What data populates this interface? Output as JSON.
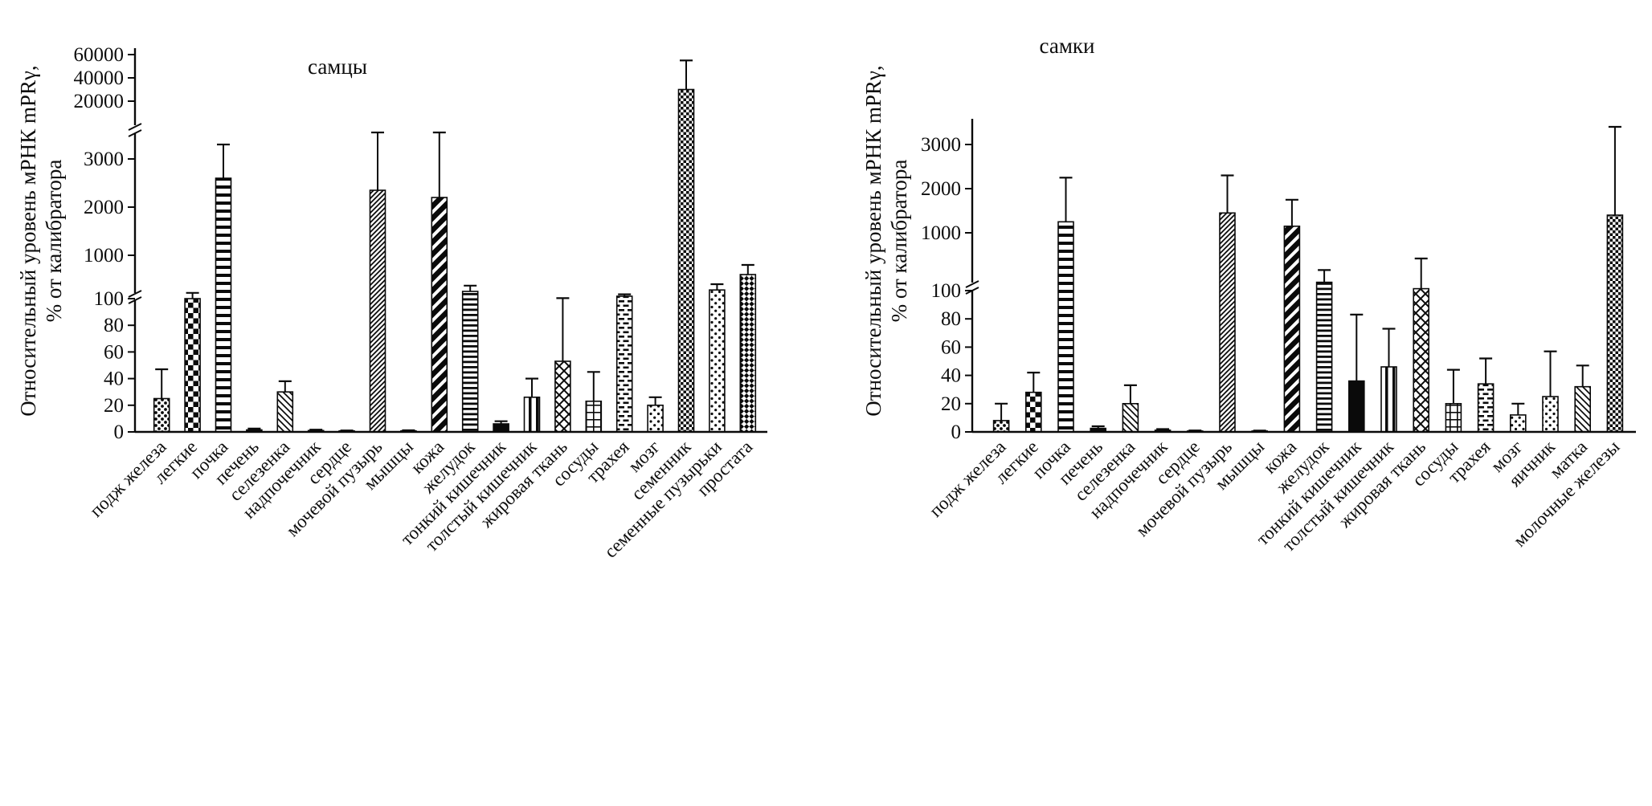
{
  "figure": {
    "background": "#ffffff",
    "ink_color": "#0a0a0a",
    "description_title": "Относительный уровень мРНК mPRγ, % от калибратора"
  },
  "chart_data": [
    {
      "type": "bar",
      "title": "самцы",
      "ylabel_lines": [
        "Относительный уровень мРНК mPRγ,",
        "% от калибратора"
      ],
      "categories": [
        "подж железа",
        "легкие",
        "почка",
        "печень",
        "селезенка",
        "надпочечник",
        "сердце",
        "мочевой пузырь",
        "мышцы",
        "кожа",
        "желудок",
        "тонкий кишечник",
        "толстый кишечник",
        "жировая ткань",
        "сосуды",
        "трахея",
        "мозг",
        "семенник",
        "семенные пузырьки",
        "простата"
      ],
      "values": [
        25,
        100,
        2600,
        1.5,
        30,
        1,
        0.7,
        2350,
        0.8,
        2200,
        250,
        6,
        26,
        53,
        23,
        150,
        20,
        30000,
        280,
        600
      ],
      "errors_plus": [
        22,
        120,
        700,
        1,
        8,
        0.7,
        0.4,
        1200,
        0.4,
        1350,
        120,
        2,
        14,
        57,
        22,
        40,
        6,
        25000,
        120,
        200
      ],
      "y_ticks": [
        0,
        20,
        40,
        60,
        80,
        100,
        1000,
        2000,
        3000,
        20000,
        40000,
        60000
      ],
      "axis_segments": [
        [
          0,
          100
        ],
        [
          100,
          3000
        ],
        [
          20000,
          60000
        ]
      ],
      "axis_breaks": [
        [
          100,
          1000
        ],
        [
          3000,
          20000
        ]
      ],
      "grid": "off",
      "legend": "none",
      "patterns": [
        "dots",
        "checker",
        "hlines",
        "solid",
        "diag-thin",
        "solid",
        "solid",
        "diag-dense",
        "solid",
        "diag-bold",
        "hlines-dense",
        "solid",
        "vlines",
        "diamond",
        "window-grid",
        "dashes",
        "dots-sparse",
        "fine-checker",
        "dots-sparse",
        "shingle"
      ]
    },
    {
      "type": "bar",
      "title": "самки",
      "ylabel_lines": [
        "Относительный уровень мРНК mPRγ,",
        "% от калибратора"
      ],
      "categories": [
        "подж железа",
        "легкие",
        "почка",
        "печень",
        "селезенка",
        "надпочечник",
        "сердце",
        "мочевой пузырь",
        "мышцы",
        "кожа",
        "желудок",
        "тонкий кишечник",
        "толстый кишечник",
        "жировая ткань",
        "сосуды",
        "трахея",
        "мозг",
        "яичник",
        "матка",
        "молочные железы"
      ],
      "values": [
        8,
        28,
        1250,
        2.5,
        20,
        1.2,
        0.6,
        1450,
        0.6,
        1150,
        230,
        36,
        46,
        130,
        20,
        34,
        12,
        25,
        32,
        1400
      ],
      "errors_plus": [
        12,
        14,
        1000,
        1.5,
        13,
        0.8,
        0.4,
        850,
        0.3,
        600,
        190,
        47,
        27,
        470,
        24,
        18,
        8,
        32,
        15,
        2000
      ],
      "y_ticks": [
        0,
        20,
        40,
        60,
        80,
        100,
        1000,
        2000,
        3000
      ],
      "axis_segments": [
        [
          0,
          100
        ],
        [
          100,
          3000
        ]
      ],
      "axis_breaks": [
        [
          100,
          1000
        ]
      ],
      "grid": "off",
      "legend": "none",
      "patterns": [
        "dots",
        "checker",
        "hlines",
        "solid",
        "diag-thin",
        "solid",
        "solid",
        "diag-dense",
        "solid",
        "diag-bold",
        "hlines-dense",
        "solid",
        "vlines",
        "diamond",
        "window-grid",
        "dashes",
        "dots-sparse",
        "dots-sparse",
        "diag-thin",
        "fine-checker"
      ]
    }
  ]
}
